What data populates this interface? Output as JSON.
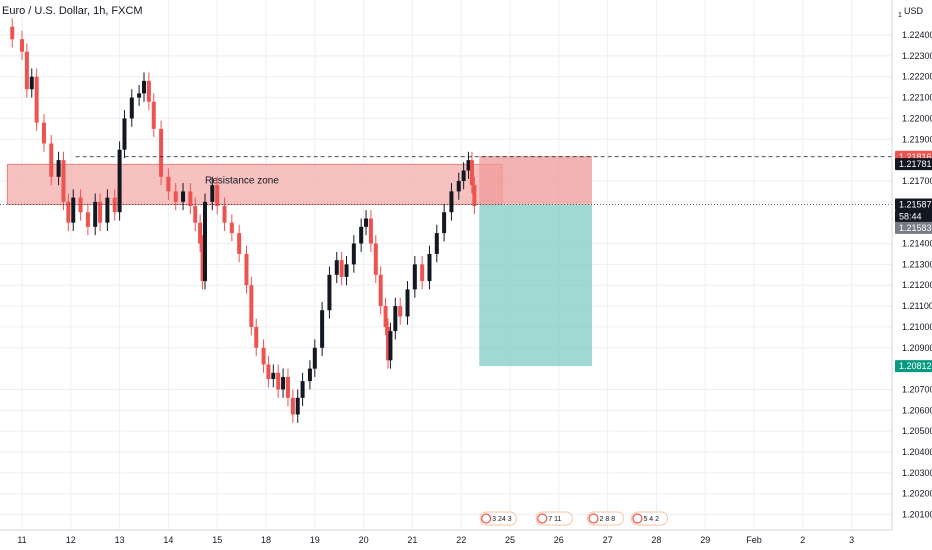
{
  "header": {
    "title": "Euro / U.S. Dollar, 1h, FXCM"
  },
  "chart_data": {
    "type": "candlestick",
    "instrument": "Euro / U.S. Dollar",
    "timeframe": "1h",
    "source": "FXCM",
    "currency": "USD",
    "y_scale_marker": "1",
    "ylim": [
      1.2005,
      1.2252
    ],
    "y_ticks": [
      "1.22400",
      "1.22300",
      "1.22200",
      "1.22100",
      "1.22000",
      "1.21900",
      "1.21700",
      "1.21600",
      "1.21400",
      "1.21300",
      "1.21200",
      "1.21100",
      "1.21000",
      "1.20900",
      "1.20700",
      "1.20600",
      "1.20500",
      "1.20400",
      "1.20300",
      "1.20200",
      "1.20100"
    ],
    "x_ticks": [
      "11",
      "12",
      "13",
      "14",
      "15",
      "18",
      "19",
      "20",
      "21",
      "22",
      "25",
      "26",
      "27",
      "28",
      "29",
      "Feb",
      "2",
      "3"
    ],
    "x_tick_day_index": [
      0,
      1,
      2,
      3,
      4,
      5,
      6,
      7,
      8,
      9,
      10,
      11,
      12,
      13,
      14,
      15,
      16,
      17
    ],
    "data_end_day_index": 9.27,
    "price_tags": [
      {
        "label": "1.21816",
        "value": 1.21816,
        "color": "#ef5350"
      },
      {
        "label": "1.21781",
        "value": 1.21781,
        "color": "#131722"
      },
      {
        "label": "1.21587",
        "value": 1.21587,
        "color": "#131722"
      },
      {
        "label": "58:44",
        "value": 1.2153,
        "color": "#131722"
      },
      {
        "label": "1.21583",
        "value": 1.21475,
        "color": "#787b86"
      },
      {
        "label": "1.20812",
        "value": 1.20812,
        "color": "#089981"
      }
    ],
    "resistance_zone": {
      "label": "Resistance zone",
      "top": 1.2178,
      "bottom": 1.21587,
      "from_day": -0.3,
      "to_day": 9.84
    },
    "dashed_line": {
      "value": 1.21816,
      "from_day": 1.1
    },
    "dotted_line": {
      "value": 1.21587
    },
    "short_position": {
      "from_day": 9.37,
      "to_day": 11.68,
      "stop": 1.2182,
      "entry": 1.21587,
      "target": 1.20812,
      "stop_color": "#ef9a9a",
      "target_color": "#80cbc4"
    },
    "ohlc": [
      {
        "t": -0.2,
        "v": 1.2238
      },
      {
        "t": 0.0,
        "v": 1.2232
      },
      {
        "t": 0.1,
        "v": 1.2214
      },
      {
        "t": 0.2,
        "v": 1.222
      },
      {
        "t": 0.3,
        "v": 1.2198
      },
      {
        "t": 0.45,
        "v": 1.2188
      },
      {
        "t": 0.6,
        "v": 1.2172
      },
      {
        "t": 0.75,
        "v": 1.218
      },
      {
        "t": 0.85,
        "v": 1.216
      },
      {
        "t": 0.95,
        "v": 1.215
      },
      {
        "t": 1.05,
        "v": 1.2162
      },
      {
        "t": 1.2,
        "v": 1.2155
      },
      {
        "t": 1.35,
        "v": 1.2148
      },
      {
        "t": 1.5,
        "v": 1.216
      },
      {
        "t": 1.6,
        "v": 1.215
      },
      {
        "t": 1.75,
        "v": 1.2162
      },
      {
        "t": 1.9,
        "v": 1.2155
      },
      {
        "t": 2.0,
        "v": 1.2185
      },
      {
        "t": 2.1,
        "v": 1.22
      },
      {
        "t": 2.25,
        "v": 1.221
      },
      {
        "t": 2.4,
        "v": 1.2212
      },
      {
        "t": 2.5,
        "v": 1.2218
      },
      {
        "t": 2.6,
        "v": 1.2208
      },
      {
        "t": 2.7,
        "v": 1.2195
      },
      {
        "t": 2.85,
        "v": 1.2172
      },
      {
        "t": 3.0,
        "v": 1.2165
      },
      {
        "t": 3.15,
        "v": 1.216
      },
      {
        "t": 3.3,
        "v": 1.2165
      },
      {
        "t": 3.45,
        "v": 1.2158
      },
      {
        "t": 3.55,
        "v": 1.215
      },
      {
        "t": 3.65,
        "v": 1.214
      },
      {
        "t": 3.7,
        "v": 1.2122
      },
      {
        "t": 3.75,
        "v": 1.216
      },
      {
        "t": 3.9,
        "v": 1.2168
      },
      {
        "t": 4.0,
        "v": 1.2158
      },
      {
        "t": 4.15,
        "v": 1.215
      },
      {
        "t": 4.3,
        "v": 1.2145
      },
      {
        "t": 4.45,
        "v": 1.2135
      },
      {
        "t": 4.6,
        "v": 1.212
      },
      {
        "t": 4.7,
        "v": 1.21
      },
      {
        "t": 4.8,
        "v": 1.209
      },
      {
        "t": 4.95,
        "v": 1.2082
      },
      {
        "t": 5.05,
        "v": 1.2075
      },
      {
        "t": 5.15,
        "v": 1.2078
      },
      {
        "t": 5.25,
        "v": 1.207
      },
      {
        "t": 5.35,
        "v": 1.2076
      },
      {
        "t": 5.45,
        "v": 1.2066
      },
      {
        "t": 5.55,
        "v": 1.2058
      },
      {
        "t": 5.65,
        "v": 1.2066
      },
      {
        "t": 5.75,
        "v": 1.2074
      },
      {
        "t": 5.9,
        "v": 1.208
      },
      {
        "t": 6.0,
        "v": 1.209
      },
      {
        "t": 6.15,
        "v": 1.2108
      },
      {
        "t": 6.3,
        "v": 1.2125
      },
      {
        "t": 6.45,
        "v": 1.2132
      },
      {
        "t": 6.55,
        "v": 1.2124
      },
      {
        "t": 6.65,
        "v": 1.213
      },
      {
        "t": 6.8,
        "v": 1.214
      },
      {
        "t": 6.95,
        "v": 1.2148
      },
      {
        "t": 7.05,
        "v": 1.2152
      },
      {
        "t": 7.15,
        "v": 1.214
      },
      {
        "t": 7.25,
        "v": 1.2125
      },
      {
        "t": 7.35,
        "v": 1.211
      },
      {
        "t": 7.45,
        "v": 1.21
      },
      {
        "t": 7.5,
        "v": 1.2084
      },
      {
        "t": 7.55,
        "v": 1.2098
      },
      {
        "t": 7.65,
        "v": 1.211
      },
      {
        "t": 7.75,
        "v": 1.2105
      },
      {
        "t": 7.9,
        "v": 1.2118
      },
      {
        "t": 8.05,
        "v": 1.213
      },
      {
        "t": 8.2,
        "v": 1.2122
      },
      {
        "t": 8.35,
        "v": 1.2135
      },
      {
        "t": 8.5,
        "v": 1.2145
      },
      {
        "t": 8.65,
        "v": 1.2155
      },
      {
        "t": 8.8,
        "v": 1.2165
      },
      {
        "t": 8.95,
        "v": 1.217
      },
      {
        "t": 9.05,
        "v": 1.2175
      },
      {
        "t": 9.15,
        "v": 1.218
      },
      {
        "t": 9.22,
        "v": 1.2168
      },
      {
        "t": 9.27,
        "v": 1.2158
      }
    ],
    "events": [
      {
        "text": "3 24 3",
        "day": 9.45
      },
      {
        "text": "7 11",
        "day": 10.6
      },
      {
        "text": "2 8 8",
        "day": 11.65
      },
      {
        "text": "5 4 2",
        "day": 12.55
      }
    ],
    "colors": {
      "up": "#131722",
      "down": "#ef5350",
      "grid": "#eceef2",
      "axis": "#d1d4dc",
      "zone_fill": "#f4b6b4"
    }
  }
}
